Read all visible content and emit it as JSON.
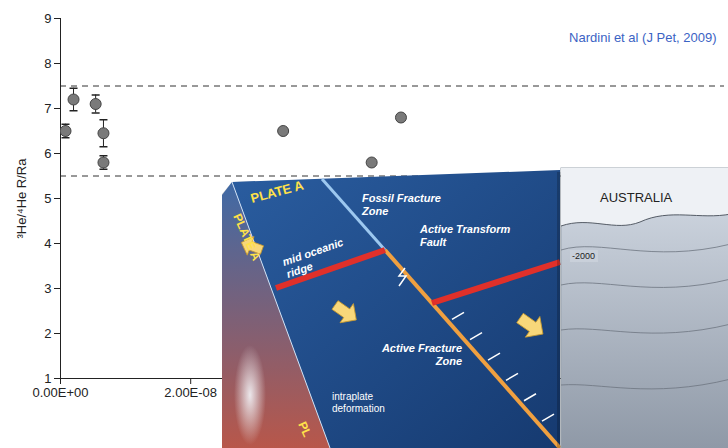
{
  "chart_data": {
    "type": "scatter",
    "annotation": "Nardini et al (J Pet, 2009)",
    "y_label": "³He/⁴He R/Ra",
    "x": [
      7.7e-10,
      2e-09,
      5.4e-09,
      6.6e-09,
      6.6e-09,
      3.42e-08,
      4.78e-08,
      5.23e-08
    ],
    "values": [
      6.5,
      7.2,
      7.1,
      6.45,
      5.8,
      6.5,
      5.8,
      6.8
    ],
    "errors": [
      0.15,
      0.25,
      0.2,
      0.3,
      0.15,
      null,
      null,
      null
    ],
    "color": "#7a7a7a",
    "marker": "circle",
    "reference_lines": [
      7.5,
      5.5
    ],
    "line_style": "dashed",
    "xlim": [
      0,
      1.02e-07
    ],
    "xticks": [
      {
        "value": 0,
        "label": "0.00E+00"
      },
      {
        "value": 2e-08,
        "label": "2.00E-08"
      }
    ],
    "ylim": [
      1,
      9
    ],
    "yticks": [
      1,
      2,
      3,
      4,
      5,
      6,
      7,
      8,
      9
    ]
  },
  "diagram": {
    "labels": {
      "plate_top": "PLATE A",
      "plate_side": "PLATE A",
      "plate_side_bottom": "PL",
      "fossil_fracture_zone": "Fossil Fracture Zone",
      "active_transform_fault": "Active Transform Fault",
      "mid_oceanic_ridge": "mid oceanic ridge",
      "active_fracture_zone": "Active Fracture Zone",
      "intraplate_deformation": "intraplate deformation"
    }
  },
  "map": {
    "labels": {
      "country": "AUSTRALIA",
      "contour": "-2000"
    }
  }
}
